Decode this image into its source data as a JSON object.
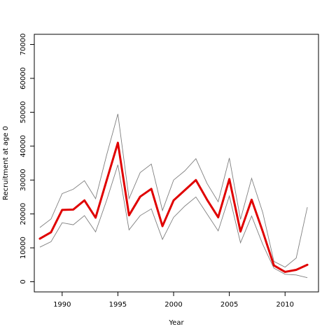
{
  "chart_data": {
    "type": "line",
    "title": "",
    "xlabel": "Year",
    "ylabel": "Recruitment at age 0",
    "xlim": [
      1987.5,
      2013
    ],
    "ylim": [
      -3000,
      73000
    ],
    "x_ticks": [
      1990,
      1995,
      2000,
      2005,
      2010
    ],
    "y_ticks": [
      0,
      10000,
      20000,
      30000,
      40000,
      50000,
      60000,
      70000
    ],
    "x": [
      1988,
      1989,
      1990,
      1991,
      1992,
      1993,
      1994,
      1995,
      1996,
      1997,
      1998,
      1999,
      2000,
      2001,
      2002,
      2003,
      2004,
      2005,
      2006,
      2007,
      2008,
      2009,
      2010,
      2011,
      2012
    ],
    "series": [
      {
        "role": "upper",
        "color": "#7f7f7f",
        "values": [
          16000,
          18500,
          26000,
          27300,
          29800,
          24500,
          37500,
          49500,
          24500,
          32200,
          34700,
          21000,
          30000,
          32700,
          36300,
          29000,
          23600,
          36500,
          18400,
          30500,
          20400,
          6000,
          4300,
          7000,
          22000
        ]
      },
      {
        "role": "estimate",
        "color": "#e00000",
        "values": [
          12700,
          14600,
          21200,
          21300,
          24000,
          18900,
          30000,
          41000,
          19600,
          25100,
          27400,
          16400,
          24000,
          27000,
          30000,
          24200,
          19000,
          30300,
          14800,
          24200,
          14800,
          4800,
          2900,
          3500,
          5000
        ]
      },
      {
        "role": "lower",
        "color": "#7f7f7f",
        "values": [
          10200,
          11800,
          17400,
          16800,
          19500,
          14700,
          24100,
          34500,
          15300,
          19500,
          21500,
          12500,
          19000,
          22300,
          25000,
          20000,
          15000,
          25300,
          11500,
          19400,
          11000,
          4000,
          2200,
          2000,
          1200
        ]
      }
    ]
  }
}
